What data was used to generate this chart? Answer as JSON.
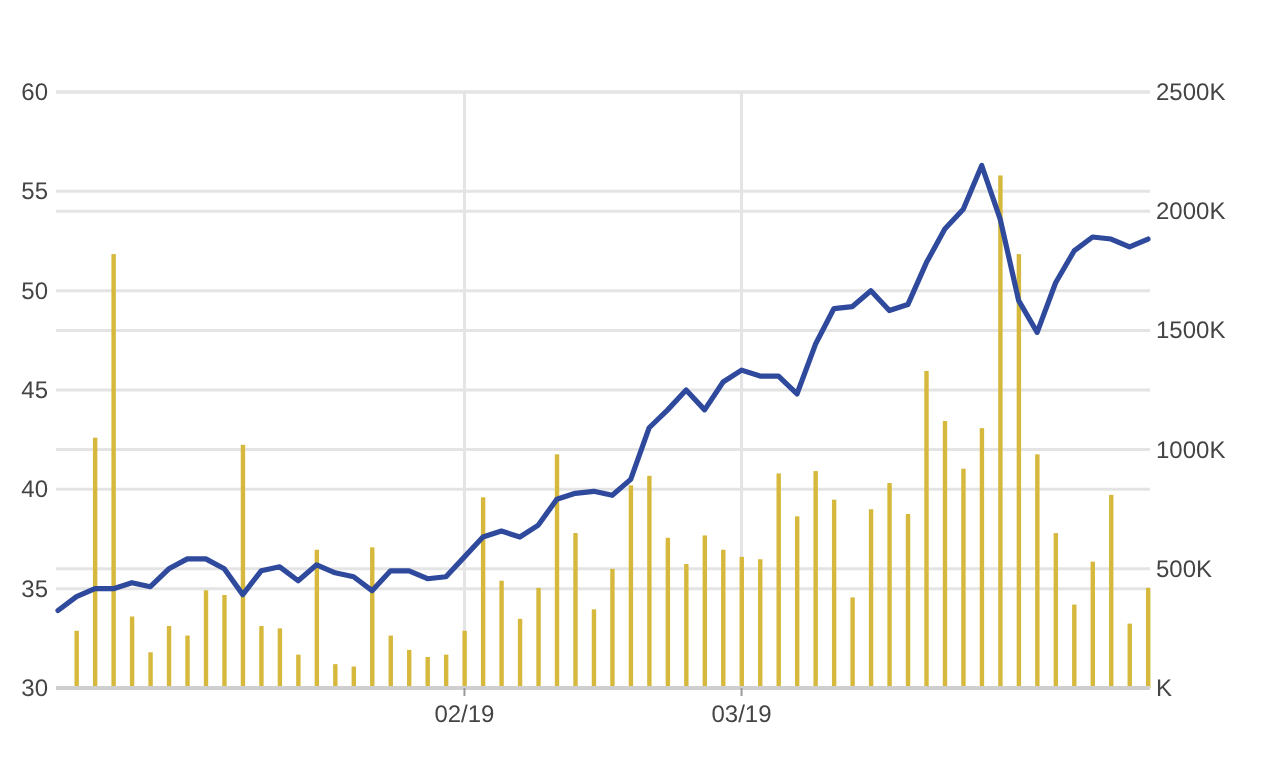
{
  "chart_data": {
    "type": "line",
    "categories": [
      null,
      null,
      null,
      null,
      null,
      null,
      null,
      null,
      null,
      null,
      null,
      null,
      null,
      null,
      null,
      null,
      null,
      null,
      null,
      null,
      null,
      null,
      "02/19",
      null,
      null,
      null,
      null,
      null,
      null,
      null,
      null,
      null,
      null,
      null,
      null,
      null,
      null,
      "03/19",
      null,
      null,
      null,
      null,
      null,
      null,
      null,
      null,
      null,
      null,
      null,
      null,
      null,
      null,
      null,
      null,
      null,
      null,
      null,
      null,
      null,
      null
    ],
    "series": [
      {
        "type": "bar",
        "axis": "y2",
        "color": "#d6b93c",
        "values": [
          null,
          240,
          1050,
          1820,
          300,
          150,
          260,
          220,
          410,
          390,
          1020,
          260,
          250,
          140,
          580,
          100,
          90,
          590,
          220,
          160,
          130,
          140,
          240,
          800,
          450,
          290,
          420,
          980,
          650,
          330,
          500,
          850,
          890,
          630,
          520,
          640,
          580,
          550,
          540,
          900,
          720,
          910,
          790,
          380,
          750,
          860,
          730,
          1330,
          1120,
          920,
          1090,
          2150,
          1820,
          980,
          650,
          350,
          530,
          810,
          270,
          420
        ]
      },
      {
        "color": "#2f4a9c",
        "values": [
          33.9,
          34.6,
          35.0,
          35.0,
          35.3,
          35.1,
          36.0,
          36.5,
          36.5,
          36.0,
          34.7,
          35.9,
          36.1,
          35.4,
          36.2,
          35.8,
          35.6,
          34.9,
          35.9,
          35.9,
          35.5,
          35.6,
          36.6,
          37.6,
          37.9,
          37.6,
          38.2,
          39.5,
          39.8,
          39.9,
          39.7,
          40.5,
          43.1,
          44.0,
          45.0,
          44.0,
          45.4,
          46.0,
          45.7,
          45.7,
          44.8,
          47.3,
          49.1,
          49.2,
          50.0,
          49.0,
          49.3,
          51.4,
          53.1,
          54.1,
          56.3,
          53.6,
          49.5,
          47.9,
          50.4,
          52.0,
          52.7,
          52.6,
          52.2,
          52.6
        ]
      }
    ],
    "ylim": [
      30,
      60
    ],
    "yticks": [
      30,
      35,
      40,
      45,
      50,
      55,
      60
    ],
    "y2lim": [
      0,
      2500
    ],
    "y2ticks": [
      {
        "value": 0,
        "label": "K"
      },
      {
        "value": 500,
        "label": "500K"
      },
      {
        "value": 1000,
        "label": "1000K"
      },
      {
        "value": 1500,
        "label": "1500K"
      },
      {
        "value": 2000,
        "label": "2000K"
      },
      {
        "value": 2500,
        "label": "2500K"
      }
    ],
    "grid": true,
    "marker": "none",
    "line_style": "solid"
  }
}
